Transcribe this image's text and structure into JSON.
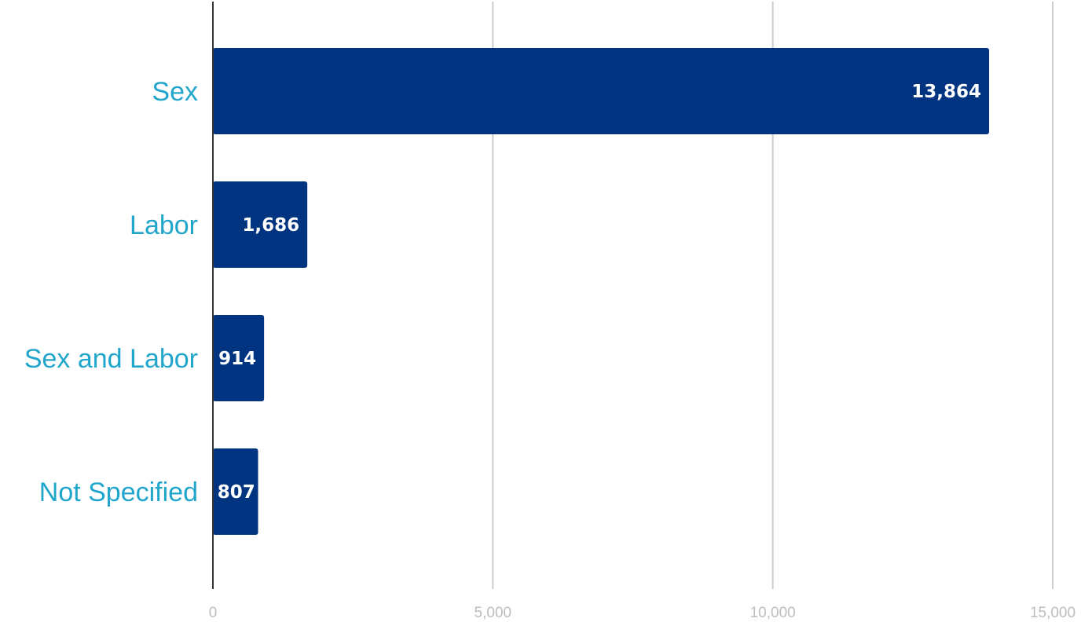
{
  "chart_data": {
    "type": "bar",
    "orientation": "horizontal",
    "categories": [
      "Sex",
      "Labor",
      "Sex and Labor",
      "Not Specified"
    ],
    "values": [
      13864,
      1686,
      914,
      807
    ],
    "value_labels": [
      "13,864",
      "1,686",
      "914",
      "807"
    ],
    "xlim": [
      0,
      15000
    ],
    "x_ticks": [
      0,
      5000,
      10000,
      15000
    ],
    "x_tick_labels": [
      "0",
      "5,000",
      "10,000",
      "15,000"
    ],
    "grid": true,
    "legend": "none",
    "title": "",
    "xlabel": "",
    "ylabel": ""
  },
  "colors": {
    "bar": "#003380",
    "category_label": "#21a6cb",
    "value_label_inside": "#ffffff",
    "value_label_outside": "#003380",
    "gridline": "#cccccc",
    "axis": "#333333",
    "tick_label": "#bdbdbd"
  }
}
